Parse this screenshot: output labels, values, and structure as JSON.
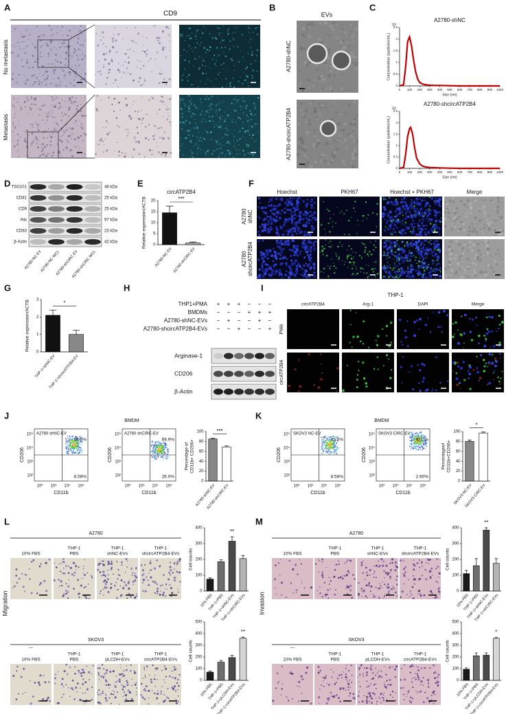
{
  "panel_labels": [
    "A",
    "B",
    "C",
    "D",
    "E",
    "F",
    "G",
    "H",
    "I",
    "J",
    "K",
    "L",
    "M"
  ],
  "A": {
    "title": "CD9",
    "rows": [
      "No metastasis",
      "Metastasis"
    ]
  },
  "B": {
    "title": "EVs",
    "rows": [
      "A2780-shNC",
      "A2780-shcircATP2B4"
    ]
  },
  "D": {
    "proteins": [
      "TSG101",
      "CD81",
      "CD9",
      "Alix",
      "CD63",
      "β-Actin"
    ],
    "sizes": [
      "48 kDa",
      "25 kDa",
      "25 kDa",
      "97 kDa",
      "23 kDa",
      "42 kDa"
    ],
    "lanes": [
      "A2780-NC EV",
      "A2780-NC WCL",
      "A2780-shCIRC EV",
      "A2780-shCIRC WCL"
    ]
  },
  "F": {
    "columns": [
      "Hoechst",
      "PKH67",
      "Hoechst + PKH67",
      "Merge"
    ],
    "rows": [
      [
        "A2780",
        "shNC"
      ],
      [
        "A2780",
        "shcircATP2B4"
      ]
    ]
  },
  "H": {
    "conditions": [
      {
        "label": "THP1+PMA",
        "signs": [
          "+",
          "+",
          "+",
          "−",
          "−",
          "−"
        ]
      },
      {
        "label": "BMDMs",
        "signs": [
          "−",
          "−",
          "−",
          "+",
          "+",
          "+"
        ]
      },
      {
        "label": "A2780-shNC-EVs",
        "signs": [
          "−",
          "+",
          "−",
          "−",
          "+",
          "−"
        ]
      },
      {
        "label": "A2780-shcircATP2B4-EVs",
        "signs": [
          "−",
          "−",
          "+",
          "−",
          "−",
          "+"
        ]
      }
    ],
    "proteins": [
      "Arginase-1",
      "CD206",
      "β-Actin"
    ]
  },
  "I": {
    "title": "THP-1",
    "columns": [
      "circATP2B4",
      "Arg-1",
      "DAPI",
      "Merge"
    ],
    "rows": [
      "PMA",
      "circATP2B4"
    ]
  },
  "J": {
    "title": "BMDM",
    "y_label": "CD206",
    "x_label": "CD11b",
    "ticks": [
      "10²",
      "10³",
      "10⁴",
      "10⁵"
    ],
    "plots": [
      {
        "title": "A2780 shNC-EV",
        "upper": "86.0%",
        "lower": "8.58%"
      },
      {
        "title": "A2780 shCIRC-EV",
        "upper": "69.9%",
        "lower": "26.0%"
      }
    ]
  },
  "K": {
    "title": "BMDM",
    "y_label": "CD206",
    "x_label": "CD11b",
    "ticks": [
      "10²",
      "10³",
      "10⁴",
      "10⁵"
    ],
    "plots": [
      {
        "title": "SKOV3 NC-EV",
        "upper": "81.2%",
        "lower": "8.58%"
      },
      {
        "title": "SKOV3 CIRC-EV",
        "upper": "97.2%",
        "lower": "2.60%"
      }
    ]
  },
  "L": {
    "side_label": "Migration",
    "groups": [
      {
        "title": "A2780",
        "columns": [
          [
            "10% FBS"
          ],
          [
            "THP-1",
            "PBS"
          ],
          [
            "THP-1",
            "shNC-EVs"
          ],
          [
            "THP-1",
            "shcircATP2B4-EVs"
          ]
        ]
      },
      {
        "title": "SKOV3",
        "dash": "—",
        "columns": [
          [
            "10% FBS"
          ],
          [
            "THP-1",
            "PBS"
          ],
          [
            "THP-1",
            "pLCDH-EVs"
          ],
          [
            "THP-1",
            "circATP2B4-EVs"
          ]
        ]
      }
    ]
  },
  "M": {
    "side_label": "Invasion",
    "groups": [
      {
        "title": "A2780",
        "columns": [
          [
            "10% FBS"
          ],
          [
            "THP-1",
            "PBS"
          ],
          [
            "THP-1",
            "shNC-EVs"
          ],
          [
            "THP-1",
            "shcircATP2B4-EVs"
          ]
        ]
      },
      {
        "title": "SKOV3",
        "dash": "—",
        "columns": [
          [
            "10% FBS"
          ],
          [
            "THP-1",
            "PBS"
          ],
          [
            "THP-1",
            "pLCDH-EVs"
          ],
          [
            "THP-1",
            "circATP2B4-EVs"
          ]
        ]
      }
    ]
  },
  "chart_data": [
    {
      "type": "line",
      "title": "A2780-shNC",
      "x": [
        0,
        40,
        60,
        80,
        100,
        120,
        140,
        160,
        180,
        200,
        230,
        260,
        300,
        350,
        400,
        500,
        600,
        800,
        1000
      ],
      "values": [
        0,
        0.05,
        0.8,
        1.9,
        2.1,
        1.7,
        1.1,
        0.6,
        0.3,
        0.15,
        0.08,
        0.05,
        0.03,
        0.02,
        0.02,
        0.01,
        0,
        0,
        0
      ],
      "color": "#c00000",
      "xlim": [
        0,
        1000
      ],
      "xticks": [
        0,
        100,
        200,
        300,
        400,
        500,
        600,
        700,
        800,
        900,
        1000
      ],
      "ylim": [
        0,
        2.5
      ],
      "yticks": [
        0,
        0.5,
        1,
        1.5,
        2,
        2.5
      ],
      "x_label": "Size (nm)",
      "y_label": [
        "Concentration (particles/mL)"
      ],
      "y_scale": "10⁷"
    },
    {
      "type": "line",
      "title": "A2780-shcircATP2B4",
      "x": [
        0,
        40,
        60,
        80,
        100,
        110,
        130,
        150,
        170,
        200,
        230,
        260,
        300,
        350,
        400,
        500,
        600,
        800,
        1000
      ],
      "values": [
        0,
        0.04,
        0.6,
        1.4,
        1.75,
        1.8,
        1.5,
        0.9,
        0.45,
        0.2,
        0.1,
        0.06,
        0.04,
        0.03,
        0.02,
        0.01,
        0,
        0,
        0
      ],
      "color": "#c00000",
      "xlim": [
        0,
        1000
      ],
      "xticks": [
        0,
        100,
        200,
        300,
        400,
        500,
        600,
        700,
        800,
        900,
        1000
      ],
      "ylim": [
        0,
        2.5
      ],
      "yticks": [
        0,
        0.5,
        1,
        1.5,
        2,
        2.5
      ],
      "x_label": "Size (nm)",
      "y_label": [
        "Concentration (particles/mL)"
      ],
      "y_scale": "10⁷"
    },
    {
      "type": "bar",
      "title": "circATP2B4",
      "y_label": [
        "Relative expression/ACTB"
      ],
      "categories": [
        "A2780-NC EV",
        "A2780-shCIRC EV"
      ],
      "values": [
        14.5,
        0.8
      ],
      "errors": [
        3,
        0.4
      ],
      "colors": [
        "#111111",
        "#bbbbbb"
      ],
      "ylim": [
        0,
        20
      ],
      "yticks": [
        0,
        5,
        10,
        15,
        20
      ],
      "significance": "***"
    },
    {
      "type": "bar",
      "y_label": [
        "Relative expression/ACTB"
      ],
      "categories": [
        "THP-1+shNC-EV",
        "THP-1+shcircATP2B4-EV"
      ],
      "values": [
        2.1,
        1.0
      ],
      "errors": [
        0.3,
        0.25
      ],
      "colors": [
        "#111111",
        "#888888"
      ],
      "ylim": [
        0,
        3
      ],
      "yticks": [
        0,
        1,
        2,
        3
      ],
      "significance": "*"
    },
    {
      "type": "bar",
      "y_label": [
        "Percentage of",
        "CD11b+ CD206+"
      ],
      "categories": [
        "A2780-shNC-EV",
        "A2780-shCIRC-EV"
      ],
      "values": [
        85,
        69
      ],
      "errors": [
        1.5,
        2
      ],
      "colors": [
        "#888888",
        "#ffffff"
      ],
      "ylim": [
        0,
        100
      ],
      "yticks": [
        0,
        20,
        40,
        60,
        80,
        100
      ],
      "significance": "***"
    },
    {
      "type": "bar",
      "y_label": [
        "Percentageof",
        "CD11b+CD206+"
      ],
      "categories": [
        "SKOV3-NC-EV",
        "SKOV3-CIRC-EV"
      ],
      "values": [
        80,
        97
      ],
      "errors": [
        3,
        2
      ],
      "colors": [
        "#888888",
        "#ffffff"
      ],
      "ylim": [
        0,
        100
      ],
      "yticks": [
        0,
        20,
        40,
        60,
        80,
        100
      ],
      "significance": "*"
    },
    {
      "type": "bar",
      "y_label": [
        "Cell counts"
      ],
      "categories": [
        "10% FBS",
        "THP-1+PBS",
        "THP-1+shNC-EVs",
        "THP-1+shCIRC-EVs"
      ],
      "values": [
        75,
        185,
        315,
        205
      ],
      "errors": [
        8,
        12,
        28,
        20
      ],
      "colors": [
        "#1a1a1a",
        "#6e6e6e",
        "#4a4a4a",
        "#b5b5b5"
      ],
      "ylim": [
        0,
        400
      ],
      "yticks": [
        0,
        100,
        200,
        300,
        400
      ],
      "significance": "**"
    },
    {
      "type": "bar",
      "y_label": [
        "Cell counts"
      ],
      "categories": [
        "10% FBS",
        "THP-1+PBS",
        "THP-1+pLCDH-EVs",
        "THP-1+circATP2B4-EVs"
      ],
      "values": [
        70,
        155,
        195,
        360
      ],
      "errors": [
        10,
        15,
        20,
        10
      ],
      "colors": [
        "#1a1a1a",
        "#6e6e6e",
        "#4a4a4a",
        "#d5d5d5"
      ],
      "ylim": [
        0,
        500
      ],
      "yticks": [
        0,
        100,
        200,
        300,
        400,
        500
      ],
      "significance": "**"
    },
    {
      "type": "bar",
      "y_label": [
        "Cell counts"
      ],
      "categories": [
        "10% FBS",
        "THP-1+PBS",
        "THP-1+shNC-EVs",
        "THP-1+shCIRC-EVs"
      ],
      "values": [
        110,
        160,
        385,
        175
      ],
      "errors": [
        20,
        45,
        15,
        30
      ],
      "colors": [
        "#1a1a1a",
        "#6e6e6e",
        "#4a4a4a",
        "#b5b5b5"
      ],
      "ylim": [
        0,
        400
      ],
      "yticks": [
        0,
        100,
        200,
        300,
        400
      ],
      "significance": "**"
    },
    {
      "type": "bar",
      "y_label": [
        "Cell counts"
      ],
      "categories": [
        "10% FBS",
        "THP-1+PBS",
        "THP-1+pLCDH-EVs",
        "THP-1+circATP2B4-EVs"
      ],
      "values": [
        95,
        210,
        215,
        360
      ],
      "errors": [
        12,
        25,
        20,
        8
      ],
      "colors": [
        "#1a1a1a",
        "#6e6e6e",
        "#4a4a4a",
        "#d5d5d5"
      ],
      "ylim": [
        0,
        500
      ],
      "yticks": [
        0,
        100,
        200,
        300,
        400,
        500
      ],
      "significance": "*"
    }
  ]
}
